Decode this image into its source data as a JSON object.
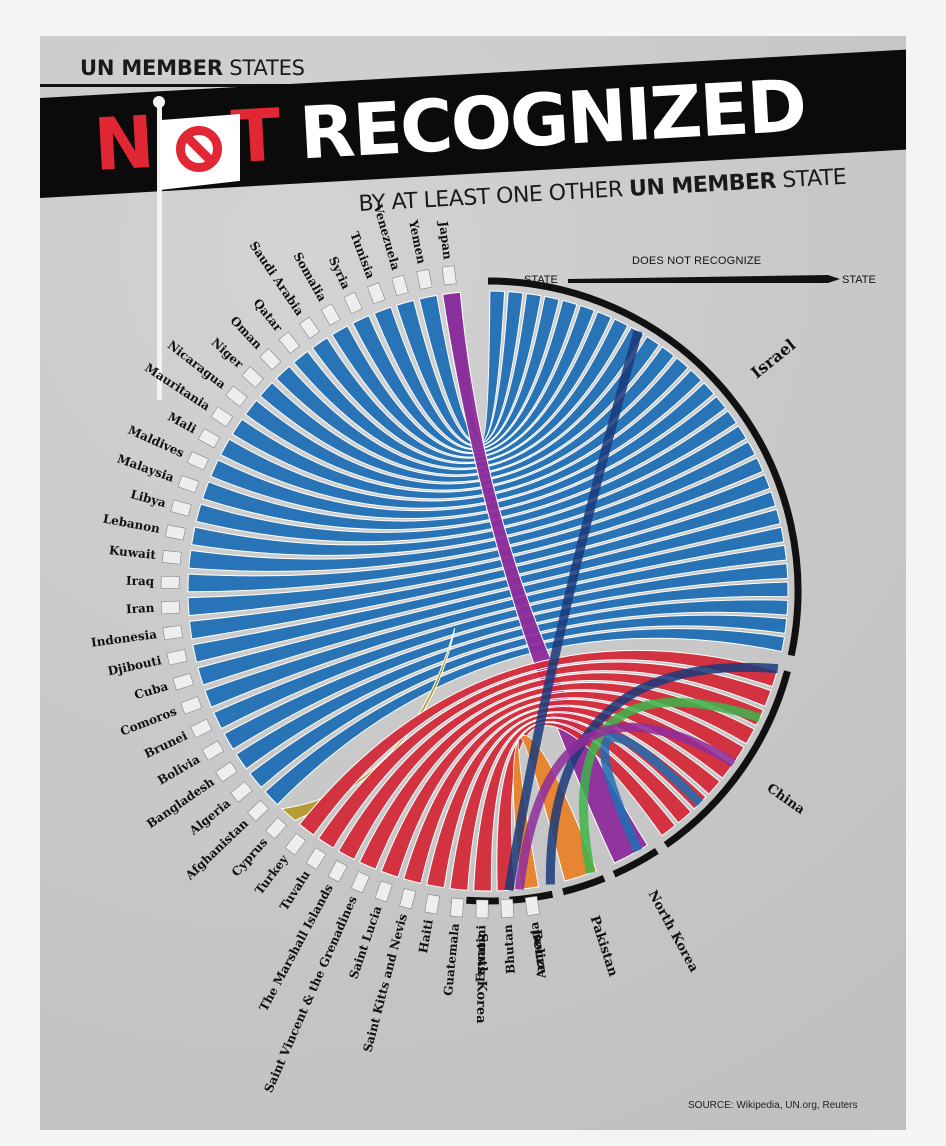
{
  "header": {
    "line1_bold": "UN MEMBER",
    "line1_light": " STATES",
    "title_n": "N",
    "title_t": "T",
    "title_rest": "RECOGNIZED",
    "line3_light": "BY AT LEAST ONE OTHER ",
    "line3_bold": "UN MEMBER",
    "line3_light2": " STATE"
  },
  "legend": {
    "left": "STATE",
    "middle": "DOES NOT RECOGNIZE",
    "right": "STATE"
  },
  "targets": [
    {
      "name": "Israel",
      "color": "#1f6fb5"
    },
    {
      "name": "China",
      "color": "#d42b3a"
    },
    {
      "name": "North Korea",
      "color": "#1f6fb5"
    },
    {
      "name": "Pakistan",
      "color": "#3cb54a"
    },
    {
      "name": "Belize",
      "color": "#1f6fb5"
    },
    {
      "name": "South Korea",
      "color": "#8e2c9b"
    }
  ],
  "sources": [
    {
      "name": "Japan",
      "color": "#8e2c9b"
    },
    {
      "name": "Yemen",
      "color": "#1f6fb5"
    },
    {
      "name": "Venezuela",
      "color": "#1f6fb5"
    },
    {
      "name": "Tunisia",
      "color": "#1f6fb5"
    },
    {
      "name": "Syria",
      "color": "#1f6fb5"
    },
    {
      "name": "Somalia",
      "color": "#1f6fb5"
    },
    {
      "name": "Saudi Arabia",
      "color": "#1f6fb5"
    },
    {
      "name": "Qatar",
      "color": "#1f6fb5"
    },
    {
      "name": "Oman",
      "color": "#1f6fb5"
    },
    {
      "name": "Niger",
      "color": "#1f6fb5"
    },
    {
      "name": "Nicaragua",
      "color": "#1f6fb5"
    },
    {
      "name": "Mauritania",
      "color": "#1f6fb5"
    },
    {
      "name": "Mali",
      "color": "#1f6fb5"
    },
    {
      "name": "Maldives",
      "color": "#1f6fb5"
    },
    {
      "name": "Malaysia",
      "color": "#1f6fb5"
    },
    {
      "name": "Libya",
      "color": "#1f6fb5"
    },
    {
      "name": "Lebanon",
      "color": "#1f6fb5"
    },
    {
      "name": "Kuwait",
      "color": "#1f6fb5"
    },
    {
      "name": "Iraq",
      "color": "#1f6fb5"
    },
    {
      "name": "Iran",
      "color": "#1f6fb5"
    },
    {
      "name": "Indonesia",
      "color": "#1f6fb5"
    },
    {
      "name": "Djibouti",
      "color": "#1f6fb5"
    },
    {
      "name": "Cuba",
      "color": "#1f6fb5"
    },
    {
      "name": "Comoros",
      "color": "#1f6fb5"
    },
    {
      "name": "Brunei",
      "color": "#1f6fb5"
    },
    {
      "name": "Bolivia",
      "color": "#1f6fb5"
    },
    {
      "name": "Bangladesh",
      "color": "#1f6fb5"
    },
    {
      "name": "Algeria",
      "color": "#1f6fb5"
    },
    {
      "name": "Afghanistan",
      "color": "#1f6fb5"
    },
    {
      "name": "Cyprus",
      "color": "#b59a2c"
    },
    {
      "name": "Turkey",
      "color": "#d42b3a"
    },
    {
      "name": "Tuvalu",
      "color": "#d42b3a"
    },
    {
      "name": "The Marshall Islands",
      "color": "#d42b3a"
    },
    {
      "name": "Saint Vincent & the Grenadines",
      "color": "#d42b3a"
    },
    {
      "name": "Saint Lucia",
      "color": "#d42b3a"
    },
    {
      "name": "Saint Kitts and Nevis",
      "color": "#d42b3a"
    },
    {
      "name": "Haiti",
      "color": "#d42b3a"
    },
    {
      "name": "Guatemala",
      "color": "#d42b3a"
    },
    {
      "name": "Eswatini",
      "color": "#d42b3a"
    },
    {
      "name": "Bhutan",
      "color": "#d42b3a"
    },
    {
      "name": "Armenia",
      "color": "#e8822a"
    }
  ],
  "source_note": "SOURCE: Wikipedia, UN.org, Reuters"
}
